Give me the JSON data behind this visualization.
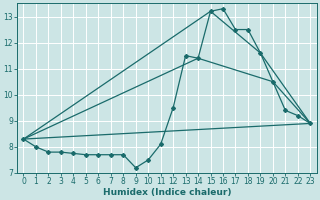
{
  "xlabel": "Humidex (Indice chaleur)",
  "xlim": [
    -0.5,
    23.5
  ],
  "ylim": [
    7,
    13.5
  ],
  "yticks": [
    7,
    8,
    9,
    10,
    11,
    12,
    13
  ],
  "xticks": [
    0,
    1,
    2,
    3,
    4,
    5,
    6,
    7,
    8,
    9,
    10,
    11,
    12,
    13,
    14,
    15,
    16,
    17,
    18,
    19,
    20,
    21,
    22,
    23
  ],
  "bg_color": "#cce5e5",
  "line_color": "#1a6b6b",
  "grid_color": "#ffffff",
  "line_main": {
    "x": [
      0,
      1,
      2,
      3,
      4,
      5,
      6,
      7,
      8,
      9,
      10,
      11,
      12,
      13,
      14,
      15,
      16,
      17,
      18,
      19,
      20,
      21,
      22,
      23
    ],
    "y": [
      8.3,
      8.0,
      7.8,
      7.8,
      7.75,
      7.7,
      7.7,
      7.7,
      7.7,
      7.2,
      7.5,
      8.1,
      9.5,
      11.5,
      11.4,
      13.2,
      13.3,
      12.5,
      12.5,
      11.6,
      10.5,
      9.4,
      9.2,
      8.9
    ]
  },
  "line_upper": {
    "x": [
      0,
      15,
      19,
      23
    ],
    "y": [
      8.3,
      13.2,
      11.6,
      8.9
    ]
  },
  "line_mid": {
    "x": [
      0,
      14,
      20,
      23
    ],
    "y": [
      8.3,
      11.4,
      10.5,
      8.9
    ]
  },
  "line_lower": {
    "x": [
      0,
      23
    ],
    "y": [
      8.3,
      8.9
    ]
  }
}
